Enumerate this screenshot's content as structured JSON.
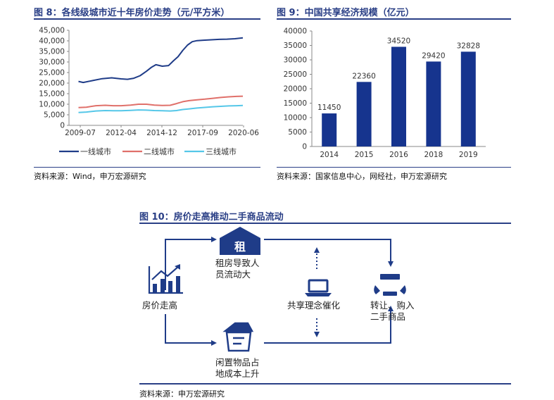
{
  "fig8": {
    "title": "图 8：各线级城市近十年房价走势（元/平方米）",
    "source": "资料来源：Wind，申万宏源研究"
  },
  "fig9": {
    "title": "图 9：中国共享经济规模（亿元）",
    "source": "资料来源：国家信息中心，网经社，申万宏源研究"
  },
  "fig10": {
    "title": "图 10：房价走高推动二手商品流动",
    "source": "资料来源：申万宏源研究",
    "nodes": {
      "house_price": "房价走高",
      "rent_line1": "租房导致人",
      "rent_line2": "员流动大",
      "idle_line1": "闲置物品占",
      "idle_line2": "地成本上升",
      "share": "共享理念催化",
      "resale_line1": "转让、购入",
      "resale_line2": "二手商品",
      "rent_char": "租"
    }
  },
  "colors": {
    "title_blue": "#2a3f86",
    "tier1": "#1f3c88",
    "tier2": "#e0706a",
    "tier3": "#55c7e8",
    "bar": "#16348e"
  },
  "chart_data": [
    {
      "type": "line",
      "x_ticks": [
        "2009-07",
        "2012-04",
        "2014-12",
        "2017-09",
        "2020-06"
      ],
      "ylim": [
        0,
        45000
      ],
      "y_ticks": [
        "0",
        "5,000",
        "10,000",
        "15,000",
        "20,000",
        "25,000",
        "30,000",
        "35,000",
        "40,000",
        "45,000"
      ],
      "grid": false,
      "legend_position": "bottom",
      "series": [
        {
          "name": "一线城市",
          "color": "#1f3c88",
          "points": [
            [
              2010.1,
              20800
            ],
            [
              2010.4,
              20300
            ],
            [
              2011.0,
              21200
            ],
            [
              2011.6,
              22100
            ],
            [
              2012.2,
              22500
            ],
            [
              2012.8,
              22000
            ],
            [
              2013.2,
              21800
            ],
            [
              2013.6,
              22300
            ],
            [
              2014.0,
              23500
            ],
            [
              2014.4,
              25600
            ],
            [
              2014.7,
              27400
            ],
            [
              2015.0,
              28700
            ],
            [
              2015.4,
              28000
            ],
            [
              2015.8,
              28300
            ],
            [
              2016.1,
              30500
            ],
            [
              2016.4,
              32500
            ],
            [
              2016.7,
              35500
            ],
            [
              2017.0,
              38000
            ],
            [
              2017.3,
              39600
            ],
            [
              2017.6,
              40100
            ],
            [
              2018.0,
              40300
            ],
            [
              2018.5,
              40500
            ],
            [
              2019.0,
              40700
            ],
            [
              2019.5,
              40800
            ],
            [
              2020.0,
              41000
            ],
            [
              2020.5,
              41400
            ]
          ]
        },
        {
          "name": "二线城市",
          "color": "#e0706a",
          "points": [
            [
              2010.1,
              8400
            ],
            [
              2010.6,
              8600
            ],
            [
              2011.2,
              9300
            ],
            [
              2011.8,
              9500
            ],
            [
              2012.3,
              9300
            ],
            [
              2012.8,
              9300
            ],
            [
              2013.4,
              9600
            ],
            [
              2013.9,
              10000
            ],
            [
              2014.4,
              10000
            ],
            [
              2014.9,
              9600
            ],
            [
              2015.4,
              9400
            ],
            [
              2015.9,
              9500
            ],
            [
              2016.3,
              10300
            ],
            [
              2016.7,
              11200
            ],
            [
              2017.1,
              11700
            ],
            [
              2017.6,
              12100
            ],
            [
              2018.1,
              12400
            ],
            [
              2018.6,
              12800
            ],
            [
              2019.1,
              13200
            ],
            [
              2019.6,
              13500
            ],
            [
              2020.1,
              13700
            ],
            [
              2020.5,
              13800
            ]
          ]
        },
        {
          "name": "三线城市",
          "color": "#55c7e8",
          "points": [
            [
              2010.1,
              6100
            ],
            [
              2010.6,
              6300
            ],
            [
              2011.2,
              6800
            ],
            [
              2011.8,
              7000
            ],
            [
              2012.3,
              6900
            ],
            [
              2012.8,
              6900
            ],
            [
              2013.4,
              7100
            ],
            [
              2013.9,
              7300
            ],
            [
              2014.4,
              7200
            ],
            [
              2014.9,
              7000
            ],
            [
              2015.4,
              6900
            ],
            [
              2015.9,
              6800
            ],
            [
              2016.3,
              7000
            ],
            [
              2016.7,
              7500
            ],
            [
              2017.1,
              7800
            ],
            [
              2017.6,
              8200
            ],
            [
              2018.1,
              8500
            ],
            [
              2018.6,
              8800
            ],
            [
              2019.1,
              9000
            ],
            [
              2019.6,
              9200
            ],
            [
              2020.1,
              9300
            ],
            [
              2020.5,
              9400
            ]
          ]
        }
      ]
    },
    {
      "type": "bar",
      "categories": [
        "2014",
        "2015",
        "2016",
        "2018",
        "2019"
      ],
      "values": [
        11450,
        22360,
        34520,
        29420,
        32828
      ],
      "value_labels": [
        "11450",
        "22360",
        "34520",
        "29420",
        "32828"
      ],
      "ylim": [
        0,
        40000
      ],
      "y_ticks": [
        "0",
        "5000",
        "10000",
        "15000",
        "20000",
        "25000",
        "30000",
        "35000",
        "40000"
      ],
      "grid": false
    }
  ]
}
